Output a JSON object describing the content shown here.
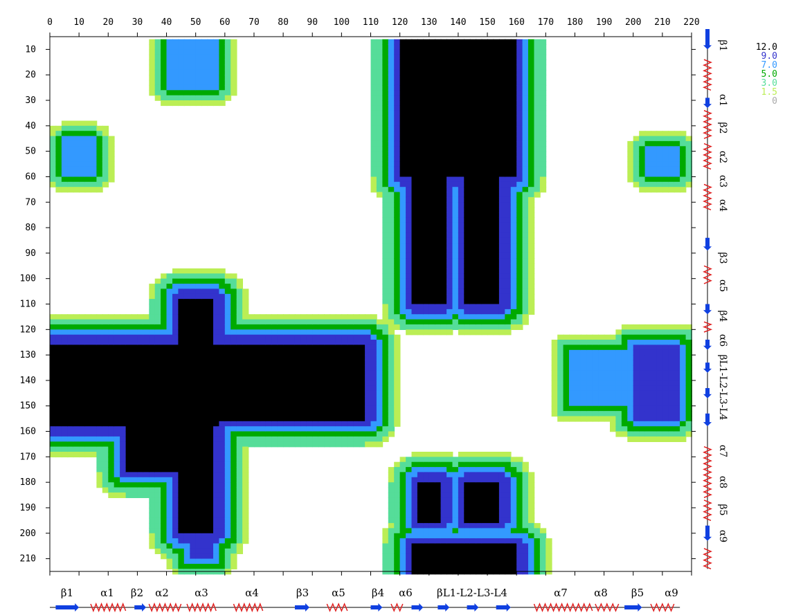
{
  "chart_data": {
    "type": "heatmap",
    "title": "",
    "xlabel": "",
    "ylabel": "",
    "xlim": [
      0,
      220
    ],
    "ylim": [
      5,
      215
    ],
    "x_ticks": [
      0,
      10,
      20,
      30,
      40,
      50,
      60,
      70,
      80,
      90,
      100,
      110,
      120,
      130,
      140,
      150,
      160,
      170,
      180,
      190,
      200,
      210,
      220
    ],
    "y_ticks": [
      10,
      20,
      30,
      40,
      50,
      60,
      70,
      80,
      90,
      100,
      110,
      120,
      130,
      140,
      150,
      160,
      170,
      180,
      190,
      200,
      210
    ],
    "color_scale": [
      {
        "label": "12.0",
        "value": 12.0,
        "color": "#000000"
      },
      {
        "label": "9.0",
        "value": 9.0,
        "color": "#3333cc"
      },
      {
        "label": "7.0",
        "value": 7.0,
        "color": "#3399ff"
      },
      {
        "label": "5.0",
        "value": 5.0,
        "color": "#00aa00"
      },
      {
        "label": "3.0",
        "value": 3.0,
        "color": "#55dd99"
      },
      {
        "label": "1.5",
        "value": 1.5,
        "color": "#bbee55"
      },
      {
        "label": "0",
        "value": 0,
        "color": "#aaaaaa"
      }
    ],
    "secondary_structure": [
      {
        "label": "β1",
        "type": "strand",
        "start": 2,
        "end": 10
      },
      {
        "label": "α1",
        "type": "helix",
        "start": 14,
        "end": 26
      },
      {
        "label": "β2",
        "type": "strand",
        "start": 29,
        "end": 33
      },
      {
        "label": "α2",
        "type": "helix",
        "start": 34,
        "end": 45
      },
      {
        "label": "α3",
        "type": "helix",
        "start": 47,
        "end": 57
      },
      {
        "label": "α4",
        "type": "helix",
        "start": 63,
        "end": 73
      },
      {
        "label": "β3",
        "type": "strand",
        "start": 84,
        "end": 89
      },
      {
        "label": "α5",
        "type": "helix",
        "start": 95,
        "end": 102
      },
      {
        "label": "β4",
        "type": "strand",
        "start": 110,
        "end": 114
      },
      {
        "label": "α6",
        "type": "helix",
        "start": 117,
        "end": 121
      },
      {
        "label": "βL1",
        "type": "strand",
        "start": 124,
        "end": 128
      },
      {
        "label": "L2",
        "type": "strand",
        "start": 133,
        "end": 137
      },
      {
        "label": "L3",
        "type": "strand",
        "start": 143,
        "end": 147
      },
      {
        "label": "L4",
        "type": "strand",
        "start": 153,
        "end": 158
      },
      {
        "label": "α7",
        "type": "helix",
        "start": 166,
        "end": 186
      },
      {
        "label": "α8",
        "type": "helix",
        "start": 187,
        "end": 195
      },
      {
        "label": "β5",
        "type": "strand",
        "start": 197,
        "end": 203
      },
      {
        "label": "α9",
        "type": "helix",
        "start": 206,
        "end": 214
      }
    ],
    "x_labels_text": [
      "β1",
      "α1",
      "β2",
      "α2",
      "α3",
      "α4",
      "β3",
      "α5",
      "β4",
      "α6",
      "βL1-L2-L3-L4",
      "α7",
      "α8",
      "β5",
      "α9"
    ],
    "y_labels_text": [
      "β1",
      "α1",
      "β2",
      "α2",
      "α3",
      "α4",
      "β3",
      "α5",
      "β4",
      "α6",
      "βL1-L2-L3-L4",
      "α7",
      "α8",
      "β5",
      "α9"
    ],
    "regions": [
      {
        "x": [
          121,
          159
        ],
        "y": [
          5,
          60
        ],
        "value": 12
      },
      {
        "x": [
          125,
          135
        ],
        "y": [
          60,
          110
        ],
        "value": 12
      },
      {
        "x": [
          143,
          154
        ],
        "y": [
          60,
          110
        ],
        "value": 12
      },
      {
        "x": [
          0,
          57
        ],
        "y": [
          126,
          158
        ],
        "value": 12
      },
      {
        "x": [
          57,
          108
        ],
        "y": [
          126,
          155
        ],
        "value": 12
      },
      {
        "x": [
          27,
          56
        ],
        "y": [
          155,
          175
        ],
        "value": 12
      },
      {
        "x": [
          45,
          56
        ],
        "y": [
          108,
          200
        ],
        "value": 12
      },
      {
        "x": [
          125,
          160
        ],
        "y": [
          205,
          215
        ],
        "value": 12
      },
      {
        "x": [
          127,
          134
        ],
        "y": [
          180,
          195
        ],
        "value": 12
      },
      {
        "x": [
          143,
          154
        ],
        "y": [
          180,
          195
        ],
        "value": 12
      },
      {
        "x": [
          178,
          200
        ],
        "y": [
          128,
          150
        ],
        "value": 7
      },
      {
        "x": [
          200,
          215
        ],
        "y": [
          126,
          155
        ],
        "value": 9
      },
      {
        "x": [
          5,
          15
        ],
        "y": [
          45,
          60
        ],
        "value": 7
      },
      {
        "x": [
          205,
          215
        ],
        "y": [
          48,
          60
        ],
        "value": 7
      },
      {
        "x": [
          40,
          58
        ],
        "y": [
          5,
          25
        ],
        "value": 7
      },
      {
        "x": [
          48,
          56
        ],
        "y": [
          198,
          210
        ],
        "value": 9
      }
    ]
  }
}
